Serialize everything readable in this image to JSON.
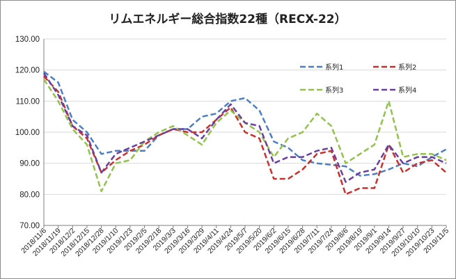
{
  "chart_data": {
    "type": "line",
    "title": "リムエネルギー総合指数22種（RECX-22）",
    "xlabel": "",
    "ylabel": "",
    "ylim": [
      70,
      130
    ],
    "yticks": [
      "70.00",
      "80.00",
      "90.00",
      "100.00",
      "110.00",
      "120.00",
      "130.00"
    ],
    "grid": true,
    "legend_position": "inside-top-right",
    "categories": [
      "2018/11/6",
      "2018/11/19",
      "2018/12/2",
      "2018/12/15",
      "2018/12/28",
      "2019/1/10",
      "2019/1/23",
      "2019/2/5",
      "2019/2/18",
      "2019/3/3",
      "2019/3/16",
      "2019/3/29",
      "2019/4/11",
      "2019/4/24",
      "2019/5/7",
      "2019/5/20",
      "2019/6/2",
      "2019/6/15",
      "2019/6/28",
      "2019/7/11",
      "2019/7/24",
      "2019/8/6",
      "2019/8/19",
      "2019/9/1",
      "2019/9/14",
      "2019/9/27",
      "2019/10/10",
      "2019/10/23",
      "2019/11/5"
    ],
    "series": [
      {
        "name": "系列1",
        "color": "#4a7ec6",
        "values": [
          119.5,
          116,
          104,
          100,
          93,
          94,
          94,
          94,
          99,
          101,
          101,
          105,
          106,
          110,
          111,
          107,
          97,
          95,
          91,
          90,
          89.5,
          89,
          86,
          86.5,
          88,
          90,
          89,
          92,
          94.5
        ]
      },
      {
        "name": "系列2",
        "color": "#c9302c",
        "values": [
          118,
          113,
          102,
          98,
          87,
          91,
          94,
          96,
          99,
          101,
          100,
          100,
          104,
          108,
          100,
          98,
          85,
          85,
          88,
          93,
          94,
          80,
          82,
          82,
          96,
          87,
          90,
          91,
          87
        ]
      },
      {
        "name": "系列3",
        "color": "#92c24a",
        "values": [
          117,
          110,
          101,
          96,
          81,
          90,
          91,
          97,
          100,
          102,
          99,
          96,
          103,
          107,
          103,
          100,
          92,
          98,
          100,
          106,
          102,
          90,
          93,
          96,
          110,
          92,
          93,
          93,
          91
        ]
      },
      {
        "name": "系列4",
        "color": "#6a3ea1",
        "values": [
          119,
          112,
          102,
          99,
          87,
          93,
          95,
          97,
          99,
          101,
          101,
          98,
          104,
          109,
          103,
          102,
          90,
          92,
          92,
          94,
          95,
          84,
          87,
          88,
          96,
          90,
          92,
          92,
          90
        ]
      }
    ]
  }
}
